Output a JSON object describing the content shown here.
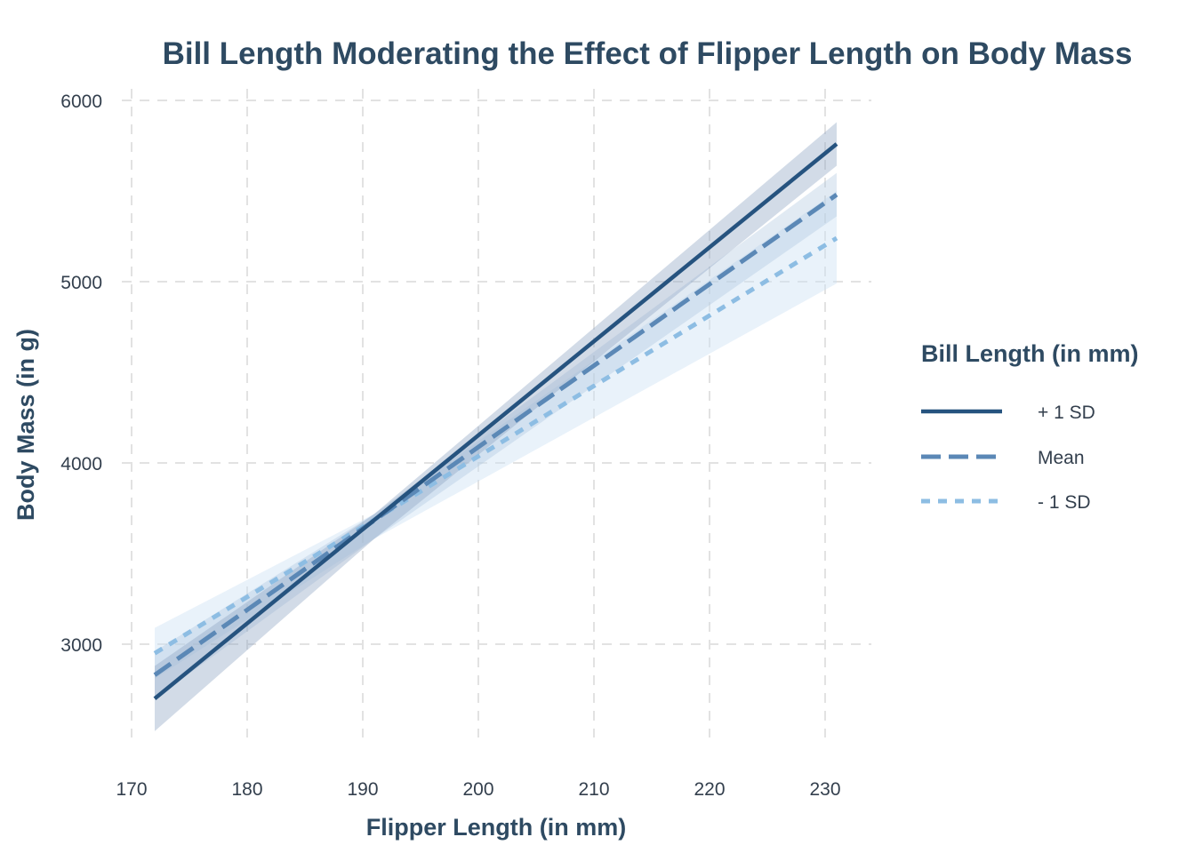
{
  "chart_data": {
    "type": "line",
    "title": "Bill Length Moderating the Effect of Flipper Length on Body Mass",
    "xlabel": "Flipper Length (in mm)",
    "ylabel": "Body Mass (in g)",
    "xlim": [
      170,
      231
    ],
    "ylim": [
      2500,
      6000
    ],
    "x_ticks": [
      "170",
      "180",
      "190",
      "200",
      "210",
      "220",
      "230"
    ],
    "y_ticks": [
      "3000",
      "4000",
      "5000",
      "6000"
    ],
    "grid": true,
    "legend_placement": "right",
    "legend_title": "Bill Length (in mm)",
    "series": [
      {
        "name": "+ 1 SD",
        "color": "#26537f",
        "line_style": "solid",
        "x": [
          172,
          231
        ],
        "y": [
          2700,
          5760
        ],
        "ci_low": [
          2520,
          5640
        ],
        "ci_high": [
          2880,
          5880
        ]
      },
      {
        "name": "Mean",
        "color": "#5b88b6",
        "line_style": "dashed",
        "x": [
          172,
          231
        ],
        "y": [
          2830,
          5480
        ],
        "ci_low": [
          2700,
          5360
        ],
        "ci_high": [
          2960,
          5600
        ]
      },
      {
        "name": "- 1 SD",
        "color": "#8dbde3",
        "line_style": "dotted",
        "x": [
          172,
          231
        ],
        "y": [
          2950,
          5240
        ],
        "ci_low": [
          2810,
          4990
        ],
        "ci_high": [
          3090,
          5500
        ]
      }
    ]
  }
}
